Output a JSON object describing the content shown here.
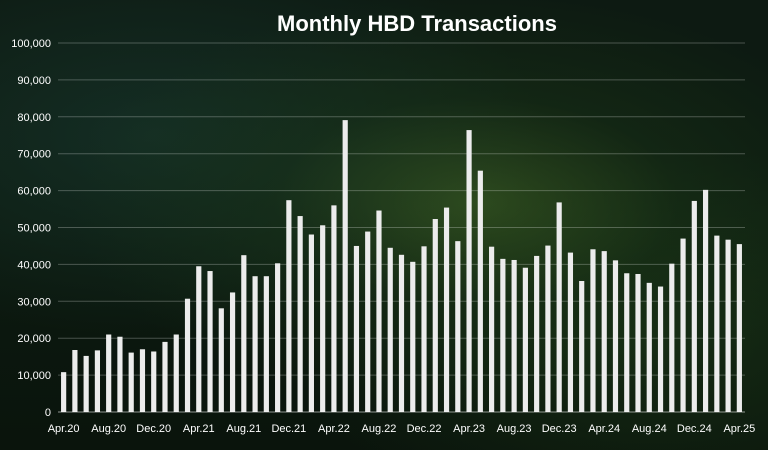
{
  "chart_data": {
    "type": "bar",
    "title": "Monthly HBD Transactions",
    "xlabel": "",
    "ylabel": "",
    "ylim": [
      0,
      100000
    ],
    "yticks": [
      "0",
      "10,000",
      "20,000",
      "30,000",
      "40,000",
      "50,000",
      "60,000",
      "70,000",
      "80,000",
      "90,000",
      "100,000"
    ],
    "ytick_values": [
      0,
      10000,
      20000,
      30000,
      40000,
      50000,
      60000,
      70000,
      80000,
      90000,
      100000
    ],
    "categories": [
      "Apr.20",
      "May.20",
      "Jun.20",
      "Jul.20",
      "Aug.20",
      "Sep.20",
      "Oct.20",
      "Nov.20",
      "Dec.20",
      "Jan.21",
      "Feb.21",
      "Mar.21",
      "Apr.21",
      "May.21",
      "Jun.21",
      "Jul.21",
      "Aug.21",
      "Sep.21",
      "Oct.21",
      "Nov.21",
      "Dec.21",
      "Jan.22",
      "Feb.22",
      "Mar.22",
      "Apr.22",
      "May.22",
      "Jun.22",
      "Jul.22",
      "Aug.22",
      "Sep.22",
      "Oct.22",
      "Nov.22",
      "Dec.22",
      "Jan.23",
      "Feb.23",
      "Mar.23",
      "Apr.23",
      "May.23",
      "Jun.23",
      "Jul.23",
      "Aug.23",
      "Sep.23",
      "Oct.23",
      "Nov.23",
      "Dec.23",
      "Jan.24",
      "Feb.24",
      "Mar.24",
      "Apr.24",
      "May.24",
      "Jun.24",
      "Jul.24",
      "Aug.24",
      "Sep.24",
      "Oct.24",
      "Nov.24",
      "Dec.24",
      "Jan.25",
      "Feb.25",
      "Mar.25",
      "Apr.25"
    ],
    "values": [
      10800,
      16800,
      15200,
      16700,
      21000,
      20400,
      16100,
      17000,
      16400,
      19000,
      21000,
      30700,
      39500,
      38200,
      28100,
      32400,
      42500,
      36800,
      36800,
      40300,
      57400,
      53100,
      48100,
      50600,
      56000,
      79100,
      45000,
      48900,
      54600,
      44500,
      42600,
      40700,
      44900,
      52300,
      55400,
      46300,
      76400,
      65400,
      44800,
      41500,
      41200,
      39100,
      42300,
      45100,
      56800,
      43200,
      35500,
      44100,
      43600,
      41100,
      37600,
      37400,
      35000,
      34000,
      40200,
      47000,
      57200,
      60200,
      47800,
      46700,
      45500
    ],
    "x_tick_labels": [
      "Apr.20",
      "Aug.20",
      "Dec.20",
      "Apr.21",
      "Aug.21",
      "Dec.21",
      "Apr.22",
      "Aug.22",
      "Dec.22",
      "Apr.23",
      "Aug.23",
      "Dec.23",
      "Apr.24",
      "Aug.24",
      "Dec.24",
      "Apr.25"
    ],
    "x_tick_every": 4,
    "grid": true,
    "legend": "none",
    "bar_color": "#ececec",
    "text_color": "#ffffff"
  }
}
